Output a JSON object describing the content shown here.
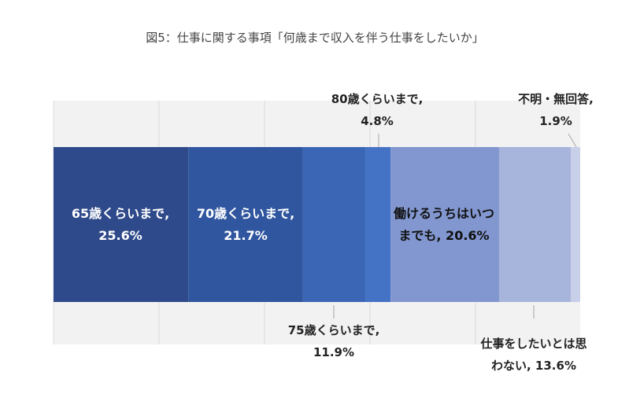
{
  "chart_data": {
    "type": "bar",
    "orientation": "horizontal-stacked-100",
    "title": "図5：仕事に関する事項「何歳まで収入を伴う仕事をしたいか」",
    "xlim": [
      0,
      100
    ],
    "grid": true,
    "legend": "none",
    "series": [
      {
        "label_lines": [
          "65歳くらいまで,",
          "25.6%"
        ],
        "value": 25.6,
        "color": "#2f4a8a",
        "text_color": "#ffffff",
        "label_pos": "inside"
      },
      {
        "label_lines": [
          "70歳くらいまで,",
          "21.7%"
        ],
        "value": 21.7,
        "color": "#30569f",
        "text_color": "#ffffff",
        "label_pos": "inside"
      },
      {
        "label_lines": [
          "75歳くらいまで,",
          "11.9%"
        ],
        "value": 11.9,
        "color": "#3b66b5",
        "text_color": "#333333",
        "label_pos": "below"
      },
      {
        "label_lines": [
          "80歳くらいまで,",
          "4.8%"
        ],
        "value": 4.8,
        "color": "#4472c4",
        "text_color": "#222222",
        "label_pos": "above"
      },
      {
        "label_lines": [
          "働けるうちはいつ",
          "までも, 20.6%"
        ],
        "value": 20.6,
        "color": "#8297d0",
        "text_color": "#111111",
        "label_pos": "inside"
      },
      {
        "label_lines": [
          "仕事をしたいとは思",
          "わない, 13.6%"
        ],
        "value": 13.6,
        "color": "#a7b4dc",
        "text_color": "#111111",
        "label_pos": "below"
      },
      {
        "label_lines": [
          "不明・無回答,",
          "1.9%"
        ],
        "value": 1.9,
        "color": "#c8cfe8",
        "text_color": "#222222",
        "label_pos": "above"
      }
    ]
  }
}
